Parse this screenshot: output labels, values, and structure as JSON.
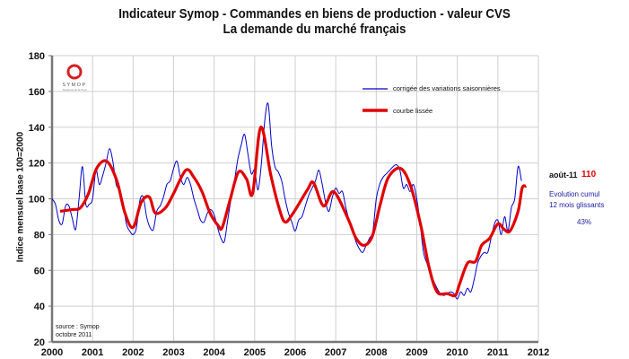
{
  "chart_data": {
    "type": "line",
    "title": "Indicateur Symop - Commandes en biens de production  -  valeur CVS",
    "subtitle": "La demande du marché français",
    "ylabel": "Indice mensuel base 100=2000",
    "xlabel": "",
    "xlim": [
      2000,
      2012
    ],
    "ylim": [
      20,
      180
    ],
    "xticks": [
      "2000",
      "2001",
      "2002",
      "2003",
      "2004",
      "2005",
      "2006",
      "2007",
      "2008",
      "2009",
      "2010",
      "2011",
      "2012"
    ],
    "yticks": [
      "20",
      "40",
      "60",
      "80",
      "100",
      "120",
      "140",
      "160",
      "180"
    ],
    "grid": true,
    "legend_position": "top-right",
    "series": [
      {
        "name": "corrigée des variations saisonnières",
        "color": "#0000cc",
        "start": "2000-01",
        "frequency": "monthly",
        "values": [
          100,
          97,
          88,
          86,
          96,
          96,
          89,
          83,
          100,
          118,
          97,
          97,
          100,
          116,
          108,
          113,
          120,
          128,
          121,
          108,
          105,
          98,
          86,
          82,
          80,
          84,
          99,
          101,
          90,
          84,
          83,
          93,
          96,
          101,
          108,
          110,
          117,
          121,
          112,
          108,
          112,
          108,
          100,
          94,
          88,
          87,
          92,
          94,
          91,
          84,
          78,
          76,
          88,
          100,
          110,
          122,
          130,
          136,
          125,
          114,
          116,
          105,
          120,
          144,
          153,
          130,
          118,
          115,
          110,
          100,
          92,
          87,
          82,
          88,
          90,
          96,
          102,
          106,
          110,
          116,
          108,
          98,
          93,
          101,
          106,
          103,
          104,
          95,
          88,
          82,
          76,
          72,
          70,
          74,
          78,
          82,
          100,
          108,
          112,
          114,
          116,
          118,
          119,
          116,
          106,
          108,
          104,
          108,
          100,
          86,
          70,
          64,
          58,
          54,
          50,
          47,
          46,
          47,
          48,
          47,
          44,
          48,
          46,
          50,
          48,
          55,
          64,
          68,
          70,
          70,
          78,
          86,
          88,
          80,
          90,
          82,
          95,
          100,
          118,
          110
        ]
      },
      {
        "name": "courbe lissée",
        "color": "#e00000",
        "x": [
          2000.2,
          2000.5,
          2000.7,
          2000.9,
          2001.1,
          2001.35,
          2001.6,
          2001.8,
          2002.0,
          2002.2,
          2002.4,
          2002.55,
          2002.8,
          2003.0,
          2003.3,
          2003.5,
          2003.7,
          2003.9,
          2004.1,
          2004.2,
          2004.4,
          2004.6,
          2004.8,
          2004.95,
          2005.15,
          2005.4,
          2005.6,
          2005.75,
          2005.95,
          2006.3,
          2006.45,
          2006.7,
          2006.95,
          2007.3,
          2007.5,
          2007.7,
          2007.9,
          2008.1,
          2008.3,
          2008.6,
          2008.85,
          2009.1,
          2009.3,
          2009.5,
          2009.75,
          2009.95,
          2010.05,
          2010.25,
          2010.45,
          2010.6,
          2010.8,
          2011.0,
          2011.15,
          2011.3,
          2011.5,
          2011.6,
          2011.7
        ],
        "values": [
          93,
          94,
          95,
          103,
          117,
          121,
          110,
          92,
          84,
          98,
          101,
          92,
          95,
          103,
          116,
          112,
          104,
          92,
          85,
          84,
          100,
          115,
          111,
          103,
          140,
          113,
          95,
          87,
          92,
          105,
          109,
          96,
          104,
          89,
          78,
          74,
          79,
          97,
          112,
          117,
          107,
          85,
          62,
          48,
          47,
          46,
          52,
          64,
          65,
          74,
          78,
          86,
          83,
          82,
          93,
          106,
          107
        ]
      }
    ],
    "annotations": {
      "last_month": "août-11",
      "last_value": "110",
      "evolution_line1": "Evolution cumul",
      "evolution_line2": "12 mois glissants",
      "evolution_value": "43%",
      "source_line1": "source :  Symop",
      "source_line2": "octobre 2011"
    }
  },
  "logo": {
    "text": "SYMOP",
    "tagline": "Solutions de la Prod"
  },
  "colors": {
    "raw": "#0000cc",
    "smooth": "#e00000",
    "grid": "#cfcfcf",
    "axis": "#777777"
  }
}
